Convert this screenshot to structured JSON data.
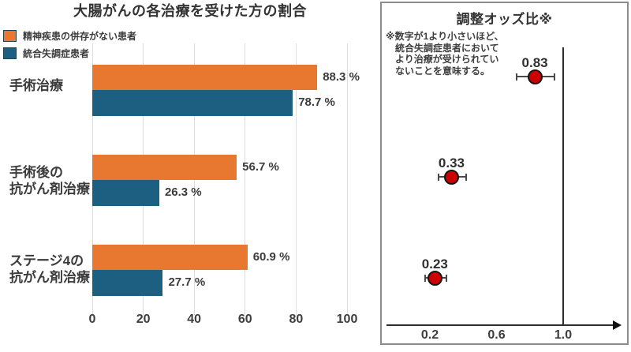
{
  "colors": {
    "no_mental_illness": "#E87730",
    "schizophrenia": "#1D5F81",
    "odds_point": "#CC0000",
    "text": "#3b3b3b",
    "grid": "#dcdcdc",
    "panel_border": "#8c8c8c"
  },
  "chart_data": [
    {
      "type": "bar",
      "orientation": "horizontal",
      "title": "大腸がんの各治療を受けた方の割合",
      "categories": [
        "手術治療",
        "手術後の\n抗がん剤治療",
        "ステージ4の\n抗がん剤治療"
      ],
      "series": [
        {
          "name": "精神疾患の併存がない患者",
          "color": "#E87730",
          "values": [
            88.3,
            56.7,
            60.9
          ],
          "value_labels": [
            "88.3 %",
            "56.7 %",
            "60.9 %"
          ]
        },
        {
          "name": "統合失調症患者",
          "color": "#1D5F81",
          "values": [
            78.7,
            26.3,
            27.7
          ],
          "value_labels": [
            "78.7 %",
            "26.3 %",
            "27.7 %"
          ]
        }
      ],
      "xlim": [
        0,
        100
      ],
      "xticks": [
        0,
        20,
        40,
        60,
        80,
        100
      ],
      "xtick_labels": [
        "0",
        "20",
        "40",
        "60",
        "80",
        "100"
      ],
      "grid": true,
      "legend_position": "top-left"
    },
    {
      "type": "scatter",
      "subtype": "forest-plot",
      "title": "調整オッズ比※",
      "note_lines": [
        "※数字が1より小さいほど、",
        "統合失調症患者において",
        "より治療が受けられてい",
        "ないことを意味する。"
      ],
      "points": [
        {
          "label": "0.83",
          "value": 0.83,
          "ci_low": 0.72,
          "ci_high": 0.95
        },
        {
          "label": "0.33",
          "value": 0.33,
          "ci_low": 0.25,
          "ci_high": 0.42
        },
        {
          "label": "0.23",
          "value": 0.23,
          "ci_low": 0.17,
          "ci_high": 0.3
        }
      ],
      "point_color": "#CC0000",
      "xticks": [
        0.2,
        0.6,
        1.0
      ],
      "xtick_labels": [
        "0.2",
        "0.6",
        "1.0"
      ],
      "reference_line": 1.0,
      "axis_arrow": "right",
      "legend_position": "none"
    }
  ]
}
